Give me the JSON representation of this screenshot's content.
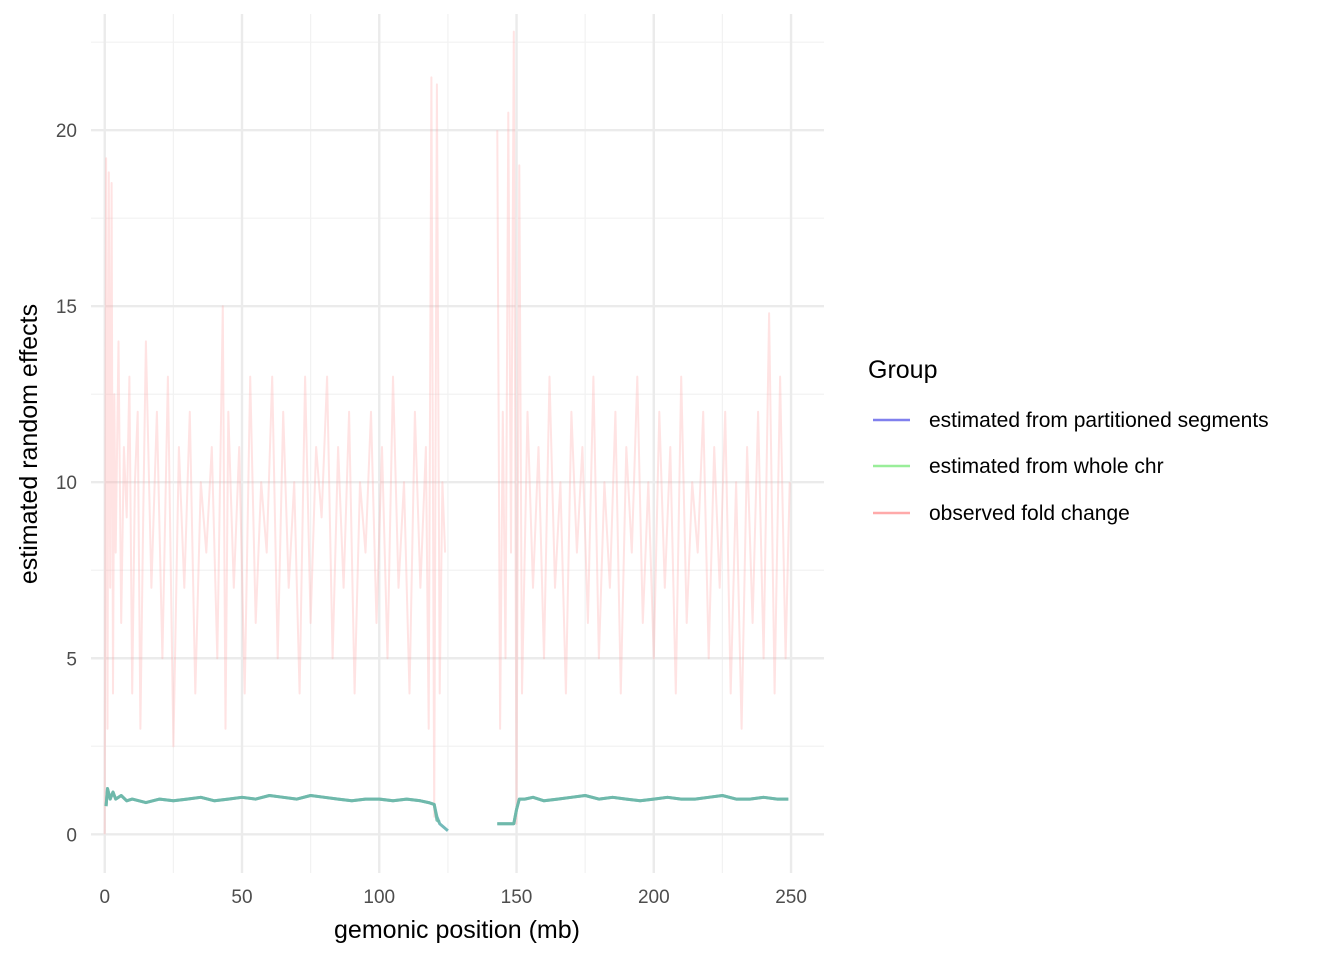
{
  "chart_data": {
    "type": "line",
    "title": "",
    "xlabel": "gemonic position (mb)",
    "ylabel": "estimated random effects",
    "xlim": [
      -5,
      262
    ],
    "ylim": [
      -1.1,
      23.3
    ],
    "x_ticks": [
      0,
      50,
      100,
      150,
      200,
      250
    ],
    "y_ticks": [
      0,
      5,
      10,
      15,
      20
    ],
    "x_tick_labels": [
      "0",
      "50",
      "100",
      "150",
      "200",
      "250"
    ],
    "y_tick_labels": [
      "0",
      "5",
      "10",
      "15",
      "20"
    ],
    "grid": true,
    "legend_title": "Group",
    "legend_position": "right",
    "series": [
      {
        "name": "estimated from partitioned segments",
        "color": "#8080ee",
        "x": [
          0.5,
          1,
          2,
          3,
          4,
          6,
          8,
          10,
          15,
          20,
          25,
          30,
          35,
          40,
          45,
          50,
          55,
          60,
          65,
          70,
          75,
          80,
          85,
          90,
          95,
          100,
          105,
          110,
          115,
          118,
          120,
          121,
          122,
          125,
          143,
          145,
          147,
          149,
          150,
          151,
          153,
          156,
          160,
          165,
          170,
          175,
          180,
          185,
          190,
          195,
          200,
          205,
          210,
          215,
          220,
          225,
          230,
          235,
          240,
          245,
          249
        ],
        "y": [
          0.8,
          1.3,
          1.0,
          1.2,
          1.0,
          1.1,
          0.95,
          1.0,
          0.9,
          1.0,
          0.95,
          1.0,
          1.05,
          0.95,
          1.0,
          1.05,
          1.0,
          1.1,
          1.05,
          1.0,
          1.1,
          1.05,
          1.0,
          0.95,
          1.0,
          1.0,
          0.95,
          1.0,
          0.95,
          0.9,
          0.85,
          0.5,
          0.3,
          0.1,
          0.3,
          0.3,
          0.3,
          0.3,
          0.7,
          1.0,
          1.0,
          1.05,
          0.95,
          1.0,
          1.05,
          1.1,
          1.0,
          1.05,
          1.0,
          0.95,
          1.0,
          1.05,
          1.0,
          1.0,
          1.05,
          1.1,
          1.0,
          1.0,
          1.05,
          1.0,
          1.0
        ]
      },
      {
        "name": "estimated from whole chr",
        "color": "#99ee99",
        "x": [
          0.5,
          1,
          2,
          3,
          4,
          6,
          8,
          10,
          15,
          20,
          25,
          30,
          35,
          40,
          45,
          50,
          55,
          60,
          65,
          70,
          75,
          80,
          85,
          90,
          95,
          100,
          105,
          110,
          115,
          118,
          120,
          121,
          122,
          143,
          145,
          147,
          149,
          150,
          151,
          153,
          156,
          160,
          165,
          170,
          175,
          180,
          185,
          190,
          195,
          200,
          205,
          210,
          215,
          220,
          225,
          230,
          235,
          240,
          245,
          249
        ],
        "y": [
          0.8,
          1.3,
          1.0,
          1.2,
          1.0,
          1.1,
          0.95,
          1.0,
          0.9,
          1.0,
          0.95,
          1.0,
          1.05,
          0.95,
          1.0,
          1.05,
          1.0,
          1.1,
          1.05,
          1.0,
          1.1,
          1.05,
          1.0,
          0.95,
          1.0,
          1.0,
          0.95,
          1.0,
          0.95,
          0.9,
          0.85,
          0.4,
          0.35,
          0.3,
          0.3,
          0.3,
          0.3,
          0.7,
          1.0,
          1.0,
          1.05,
          0.95,
          1.0,
          1.05,
          1.1,
          1.0,
          1.05,
          1.0,
          0.95,
          1.0,
          1.05,
          1.0,
          1.0,
          1.05,
          1.1,
          1.0,
          1.0,
          1.05,
          1.0,
          1.0
        ]
      },
      {
        "name": "observed fold change",
        "color": "#ffaaaa",
        "x": [
          0,
          0.5,
          1,
          1.5,
          2,
          2.5,
          3,
          3.5,
          4,
          5,
          6,
          7,
          8,
          9,
          10,
          11,
          12,
          13,
          14,
          15,
          17,
          19,
          21,
          23,
          25,
          27,
          29,
          31,
          33,
          35,
          37,
          39,
          41,
          43,
          44,
          45,
          47,
          49,
          51,
          53,
          55,
          57,
          59,
          61,
          63,
          65,
          67,
          69,
          71,
          73,
          75,
          77,
          79,
          81,
          83,
          85,
          87,
          89,
          91,
          93,
          95,
          97,
          99,
          101,
          103,
          105,
          107,
          109,
          111,
          113,
          115,
          117,
          118,
          119,
          120,
          121,
          122,
          123,
          124,
          143,
          144,
          145,
          146,
          147,
          148,
          149,
          150,
          151,
          152,
          154,
          156,
          158,
          160,
          162,
          164,
          166,
          168,
          170,
          172,
          174,
          176,
          178,
          180,
          182,
          184,
          186,
          188,
          190,
          192,
          194,
          196,
          198,
          200,
          202,
          204,
          206,
          208,
          210,
          212,
          214,
          216,
          218,
          220,
          222,
          224,
          226,
          228,
          230,
          232,
          234,
          236,
          238,
          240,
          242,
          244,
          246,
          248,
          249.5
        ],
        "y": [
          0,
          19.2,
          3,
          18.8,
          7,
          18.5,
          4,
          12.5,
          8,
          14,
          6,
          11,
          9,
          13,
          4,
          10,
          12,
          3,
          9,
          14,
          7,
          12,
          5,
          13,
          2.5,
          11,
          7,
          12,
          4,
          10,
          8,
          11,
          5,
          15,
          3,
          12,
          7,
          11,
          4,
          13,
          6,
          10,
          8,
          13,
          5,
          12,
          7,
          10,
          4,
          13,
          6,
          11,
          9,
          13,
          5,
          11,
          7,
          12,
          4,
          10,
          8,
          12,
          6,
          11,
          5,
          13,
          7,
          10,
          4,
          12,
          7,
          11,
          3,
          21.5,
          0.5,
          21.3,
          4,
          10,
          8,
          20,
          3,
          12,
          5,
          20.5,
          8,
          22.8,
          0.3,
          19,
          4,
          12,
          7,
          11,
          5,
          13,
          7,
          10,
          4,
          12,
          8,
          11,
          6,
          13,
          5,
          10,
          7,
          12,
          4,
          11,
          8,
          13,
          6,
          10,
          5,
          12,
          7,
          11,
          4,
          13,
          6,
          10,
          8,
          12,
          5,
          11,
          7,
          12,
          4,
          10,
          3,
          11,
          6,
          12,
          5,
          14.8,
          4,
          13,
          5,
          10
        ]
      }
    ]
  }
}
